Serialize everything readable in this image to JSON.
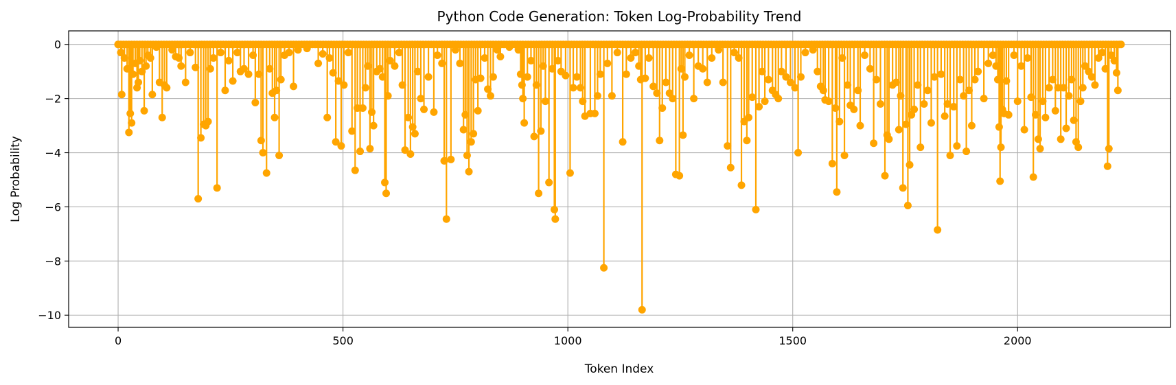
{
  "chart_data": {
    "type": "line",
    "title": "Python Code Generation: Token Log-Probability Trend",
    "xlabel": "Token Index",
    "ylabel": "Log Probability",
    "xlim": [
      -110,
      2340
    ],
    "ylim": [
      -10.45,
      0.5
    ],
    "xticks": [
      0,
      500,
      1000,
      1500,
      2000
    ],
    "yticks": [
      0,
      -2,
      -4,
      -6,
      -8,
      -10
    ],
    "xtick_labels": [
      "0",
      "500",
      "1000",
      "1500",
      "2000"
    ],
    "ytick_labels": [
      "0",
      "−2",
      "−4",
      "−6",
      "−8",
      "−10"
    ],
    "grid": true,
    "color": "#FFA500",
    "marker": "o",
    "n_tokens": 2230,
    "series": [
      {
        "points": [
          [
            0,
            0
          ],
          [
            6,
            -0.3
          ],
          [
            8,
            -1.85
          ],
          [
            14,
            -0.5
          ],
          [
            20,
            -0.9
          ],
          [
            24,
            -3.25
          ],
          [
            27,
            -2.55
          ],
          [
            30,
            -2.9
          ],
          [
            33,
            -1.1
          ],
          [
            38,
            -0.7
          ],
          [
            42,
            -1.6
          ],
          [
            45,
            -1.4
          ],
          [
            48,
            -0.6
          ],
          [
            53,
            -1.0
          ],
          [
            58,
            -2.45
          ],
          [
            62,
            -0.8
          ],
          [
            66,
            -0.4
          ],
          [
            72,
            -0.5
          ],
          [
            76,
            -1.85
          ],
          [
            85,
            -0.1
          ],
          [
            92,
            -1.4
          ],
          [
            98,
            -2.7
          ],
          [
            103,
            -1.5
          ],
          [
            108,
            -1.6
          ],
          [
            120,
            -0.2
          ],
          [
            128,
            -0.45
          ],
          [
            135,
            -0.5
          ],
          [
            140,
            -0.8
          ],
          [
            150,
            -1.4
          ],
          [
            160,
            -0.3
          ],
          [
            172,
            -0.85
          ],
          [
            178,
            -5.7
          ],
          [
            184,
            -3.45
          ],
          [
            190,
            -2.95
          ],
          [
            195,
            -3.0
          ],
          [
            200,
            -2.85
          ],
          [
            205,
            -0.9
          ],
          [
            212,
            -0.5
          ],
          [
            220,
            -5.3
          ],
          [
            228,
            -0.3
          ],
          [
            238,
            -1.7
          ],
          [
            246,
            -0.6
          ],
          [
            255,
            -1.35
          ],
          [
            265,
            -0.3
          ],
          [
            272,
            -1.0
          ],
          [
            280,
            -0.9
          ],
          [
            290,
            -1.1
          ],
          [
            300,
            -0.4
          ],
          [
            305,
            -2.15
          ],
          [
            313,
            -1.1
          ],
          [
            318,
            -3.55
          ],
          [
            322,
            -4.0
          ],
          [
            330,
            -4.75
          ],
          [
            337,
            -0.9
          ],
          [
            343,
            -1.8
          ],
          [
            348,
            -2.7
          ],
          [
            352,
            -1.7
          ],
          [
            358,
            -4.1
          ],
          [
            362,
            -1.3
          ],
          [
            370,
            -0.4
          ],
          [
            380,
            -0.3
          ],
          [
            390,
            -1.55
          ],
          [
            400,
            -0.2
          ],
          [
            420,
            -0.15
          ],
          [
            445,
            -0.7
          ],
          [
            455,
            -0.35
          ],
          [
            465,
            -2.7
          ],
          [
            470,
            -0.5
          ],
          [
            478,
            -1.05
          ],
          [
            484,
            -3.6
          ],
          [
            490,
            -1.35
          ],
          [
            496,
            -3.75
          ],
          [
            502,
            -1.5
          ],
          [
            512,
            -0.3
          ],
          [
            520,
            -3.2
          ],
          [
            527,
            -4.65
          ],
          [
            532,
            -2.35
          ],
          [
            538,
            -3.95
          ],
          [
            544,
            -2.35
          ],
          [
            550,
            -1.6
          ],
          [
            555,
            -0.8
          ],
          [
            560,
            -3.85
          ],
          [
            564,
            -2.5
          ],
          [
            568,
            -3.0
          ],
          [
            575,
            -1.0
          ],
          [
            582,
            -0.9
          ],
          [
            588,
            -1.2
          ],
          [
            593,
            -5.1
          ],
          [
            596,
            -5.5
          ],
          [
            600,
            -1.9
          ],
          [
            605,
            -0.6
          ],
          [
            615,
            -0.8
          ],
          [
            625,
            -0.3
          ],
          [
            632,
            -1.5
          ],
          [
            638,
            -3.9
          ],
          [
            645,
            -2.7
          ],
          [
            650,
            -4.05
          ],
          [
            655,
            -3.05
          ],
          [
            660,
            -3.3
          ],
          [
            666,
            -1.0
          ],
          [
            673,
            -2.0
          ],
          [
            680,
            -2.4
          ],
          [
            690,
            -1.2
          ],
          [
            702,
            -2.5
          ],
          [
            710,
            -0.4
          ],
          [
            720,
            -0.7
          ],
          [
            725,
            -4.3
          ],
          [
            730,
            -6.45
          ],
          [
            740,
            -4.25
          ],
          [
            750,
            -0.2
          ],
          [
            760,
            -0.7
          ],
          [
            768,
            -3.15
          ],
          [
            772,
            -2.6
          ],
          [
            776,
            -4.1
          ],
          [
            780,
            -4.7
          ],
          [
            785,
            -3.6
          ],
          [
            790,
            -3.3
          ],
          [
            795,
            -1.3
          ],
          [
            800,
            -2.45
          ],
          [
            806,
            -1.25
          ],
          [
            815,
            -0.5
          ],
          [
            822,
            -1.65
          ],
          [
            828,
            -1.9
          ],
          [
            834,
            -1.2
          ],
          [
            843,
            -0.2
          ],
          [
            850,
            -0.45
          ],
          [
            870,
            -0.1
          ],
          [
            890,
            -0.2
          ],
          [
            895,
            -1.1
          ],
          [
            898,
            -1.5
          ],
          [
            900,
            -2.0
          ],
          [
            903,
            -2.9
          ],
          [
            910,
            -1.2
          ],
          [
            918,
            -0.6
          ],
          [
            925,
            -3.4
          ],
          [
            930,
            -1.5
          ],
          [
            935,
            -5.5
          ],
          [
            940,
            -3.2
          ],
          [
            945,
            -0.8
          ],
          [
            950,
            -2.1
          ],
          [
            958,
            -5.1
          ],
          [
            965,
            -0.9
          ],
          [
            970,
            -6.1
          ],
          [
            972,
            -6.45
          ],
          [
            978,
            -0.6
          ],
          [
            985,
            -1.0
          ],
          [
            995,
            -1.15
          ],
          [
            1005,
            -4.75
          ],
          [
            1012,
            -1.6
          ],
          [
            1020,
            -1.2
          ],
          [
            1028,
            -1.6
          ],
          [
            1033,
            -2.1
          ],
          [
            1038,
            -2.65
          ],
          [
            1050,
            -2.55
          ],
          [
            1060,
            -2.55
          ],
          [
            1066,
            -1.9
          ],
          [
            1072,
            -1.1
          ],
          [
            1080,
            -8.25
          ],
          [
            1088,
            -0.7
          ],
          [
            1098,
            -1.9
          ],
          [
            1110,
            -0.3
          ],
          [
            1122,
            -3.6
          ],
          [
            1130,
            -1.1
          ],
          [
            1140,
            -0.5
          ],
          [
            1150,
            -0.3
          ],
          [
            1158,
            -0.8
          ],
          [
            1162,
            -1.3
          ],
          [
            1165,
            -9.8
          ],
          [
            1172,
            -1.25
          ],
          [
            1180,
            -0.5
          ],
          [
            1190,
            -1.55
          ],
          [
            1198,
            -1.8
          ],
          [
            1204,
            -3.55
          ],
          [
            1210,
            -2.35
          ],
          [
            1218,
            -1.4
          ],
          [
            1226,
            -1.8
          ],
          [
            1233,
            -2.0
          ],
          [
            1240,
            -4.8
          ],
          [
            1248,
            -4.85
          ],
          [
            1252,
            -0.9
          ],
          [
            1256,
            -3.35
          ],
          [
            1260,
            -1.2
          ],
          [
            1270,
            -0.4
          ],
          [
            1280,
            -2.0
          ],
          [
            1290,
            -0.8
          ],
          [
            1300,
            -0.9
          ],
          [
            1310,
            -1.4
          ],
          [
            1320,
            -0.5
          ],
          [
            1335,
            -0.2
          ],
          [
            1345,
            -1.4
          ],
          [
            1355,
            -3.75
          ],
          [
            1362,
            -4.55
          ],
          [
            1370,
            -0.3
          ],
          [
            1380,
            -0.5
          ],
          [
            1386,
            -5.2
          ],
          [
            1392,
            -2.85
          ],
          [
            1398,
            -3.55
          ],
          [
            1402,
            -2.7
          ],
          [
            1410,
            -1.95
          ],
          [
            1418,
            -6.1
          ],
          [
            1425,
            -2.3
          ],
          [
            1432,
            -1.0
          ],
          [
            1438,
            -2.1
          ],
          [
            1446,
            -1.3
          ],
          [
            1455,
            -1.7
          ],
          [
            1462,
            -1.85
          ],
          [
            1468,
            -2.0
          ],
          [
            1475,
            -1.0
          ],
          [
            1485,
            -1.2
          ],
          [
            1495,
            -1.4
          ],
          [
            1505,
            -1.6
          ],
          [
            1512,
            -4.0
          ],
          [
            1518,
            -1.2
          ],
          [
            1528,
            -0.3
          ],
          [
            1545,
            -0.2
          ],
          [
            1555,
            -1.0
          ],
          [
            1562,
            -1.55
          ],
          [
            1568,
            -1.7
          ],
          [
            1572,
            -2.05
          ],
          [
            1580,
            -2.1
          ],
          [
            1588,
            -4.4
          ],
          [
            1595,
            -2.35
          ],
          [
            1598,
            -5.45
          ],
          [
            1604,
            -2.85
          ],
          [
            1610,
            -0.5
          ],
          [
            1615,
            -4.1
          ],
          [
            1622,
            -1.5
          ],
          [
            1628,
            -2.25
          ],
          [
            1636,
            -2.4
          ],
          [
            1645,
            -1.7
          ],
          [
            1650,
            -3.0
          ],
          [
            1660,
            -0.4
          ],
          [
            1672,
            -0.9
          ],
          [
            1680,
            -3.65
          ],
          [
            1686,
            -1.3
          ],
          [
            1695,
            -2.2
          ],
          [
            1705,
            -4.85
          ],
          [
            1710,
            -3.35
          ],
          [
            1714,
            -3.5
          ],
          [
            1722,
            -1.5
          ],
          [
            1730,
            -1.4
          ],
          [
            1736,
            -3.15
          ],
          [
            1740,
            -1.9
          ],
          [
            1745,
            -5.3
          ],
          [
            1752,
            -2.95
          ],
          [
            1756,
            -5.95
          ],
          [
            1760,
            -4.45
          ],
          [
            1764,
            -2.6
          ],
          [
            1770,
            -2.4
          ],
          [
            1778,
            -1.5
          ],
          [
            1784,
            -3.8
          ],
          [
            1792,
            -2.2
          ],
          [
            1800,
            -1.7
          ],
          [
            1808,
            -2.9
          ],
          [
            1815,
            -1.2
          ],
          [
            1822,
            -6.85
          ],
          [
            1830,
            -1.1
          ],
          [
            1838,
            -2.65
          ],
          [
            1844,
            -2.2
          ],
          [
            1850,
            -4.1
          ],
          [
            1858,
            -2.3
          ],
          [
            1865,
            -3.75
          ],
          [
            1872,
            -1.3
          ],
          [
            1880,
            -1.9
          ],
          [
            1886,
            -3.95
          ],
          [
            1892,
            -1.7
          ],
          [
            1898,
            -3.0
          ],
          [
            1905,
            -1.3
          ],
          [
            1912,
            -1.0
          ],
          [
            1925,
            -2.0
          ],
          [
            1935,
            -0.7
          ],
          [
            1945,
            -0.4
          ],
          [
            1952,
            -0.8
          ],
          [
            1956,
            -1.3
          ],
          [
            1959,
            -3.05
          ],
          [
            1961,
            -5.05
          ],
          [
            1963,
            -3.8
          ],
          [
            1966,
            -2.4
          ],
          [
            1970,
            -2.55
          ],
          [
            1975,
            -1.35
          ],
          [
            1980,
            -2.6
          ],
          [
            1992,
            -0.4
          ],
          [
            2000,
            -2.1
          ],
          [
            2008,
            -0.8
          ],
          [
            2015,
            -3.15
          ],
          [
            2022,
            -0.5
          ],
          [
            2030,
            -1.95
          ],
          [
            2035,
            -4.9
          ],
          [
            2040,
            -2.6
          ],
          [
            2046,
            -3.5
          ],
          [
            2050,
            -3.85
          ],
          [
            2056,
            -2.1
          ],
          [
            2062,
            -2.7
          ],
          [
            2070,
            -1.6
          ],
          [
            2078,
            -1.3
          ],
          [
            2084,
            -2.45
          ],
          [
            2090,
            -1.6
          ],
          [
            2096,
            -3.5
          ],
          [
            2102,
            -1.6
          ],
          [
            2108,
            -3.1
          ],
          [
            2114,
            -1.9
          ],
          [
            2120,
            -1.3
          ],
          [
            2125,
            -2.8
          ],
          [
            2130,
            -3.6
          ],
          [
            2135,
            -3.8
          ],
          [
            2140,
            -2.1
          ],
          [
            2145,
            -1.6
          ],
          [
            2150,
            -0.8
          ],
          [
            2158,
            -1.0
          ],
          [
            2165,
            -1.2
          ],
          [
            2172,
            -1.5
          ],
          [
            2180,
            -0.5
          ],
          [
            2188,
            -0.3
          ],
          [
            2195,
            -0.9
          ],
          [
            2200,
            -4.5
          ],
          [
            2203,
            -3.85
          ],
          [
            2208,
            -0.4
          ],
          [
            2215,
            -0.6
          ],
          [
            2220,
            -1.05
          ],
          [
            2223,
            -1.7
          ],
          [
            2230,
            0
          ]
        ]
      }
    ]
  }
}
